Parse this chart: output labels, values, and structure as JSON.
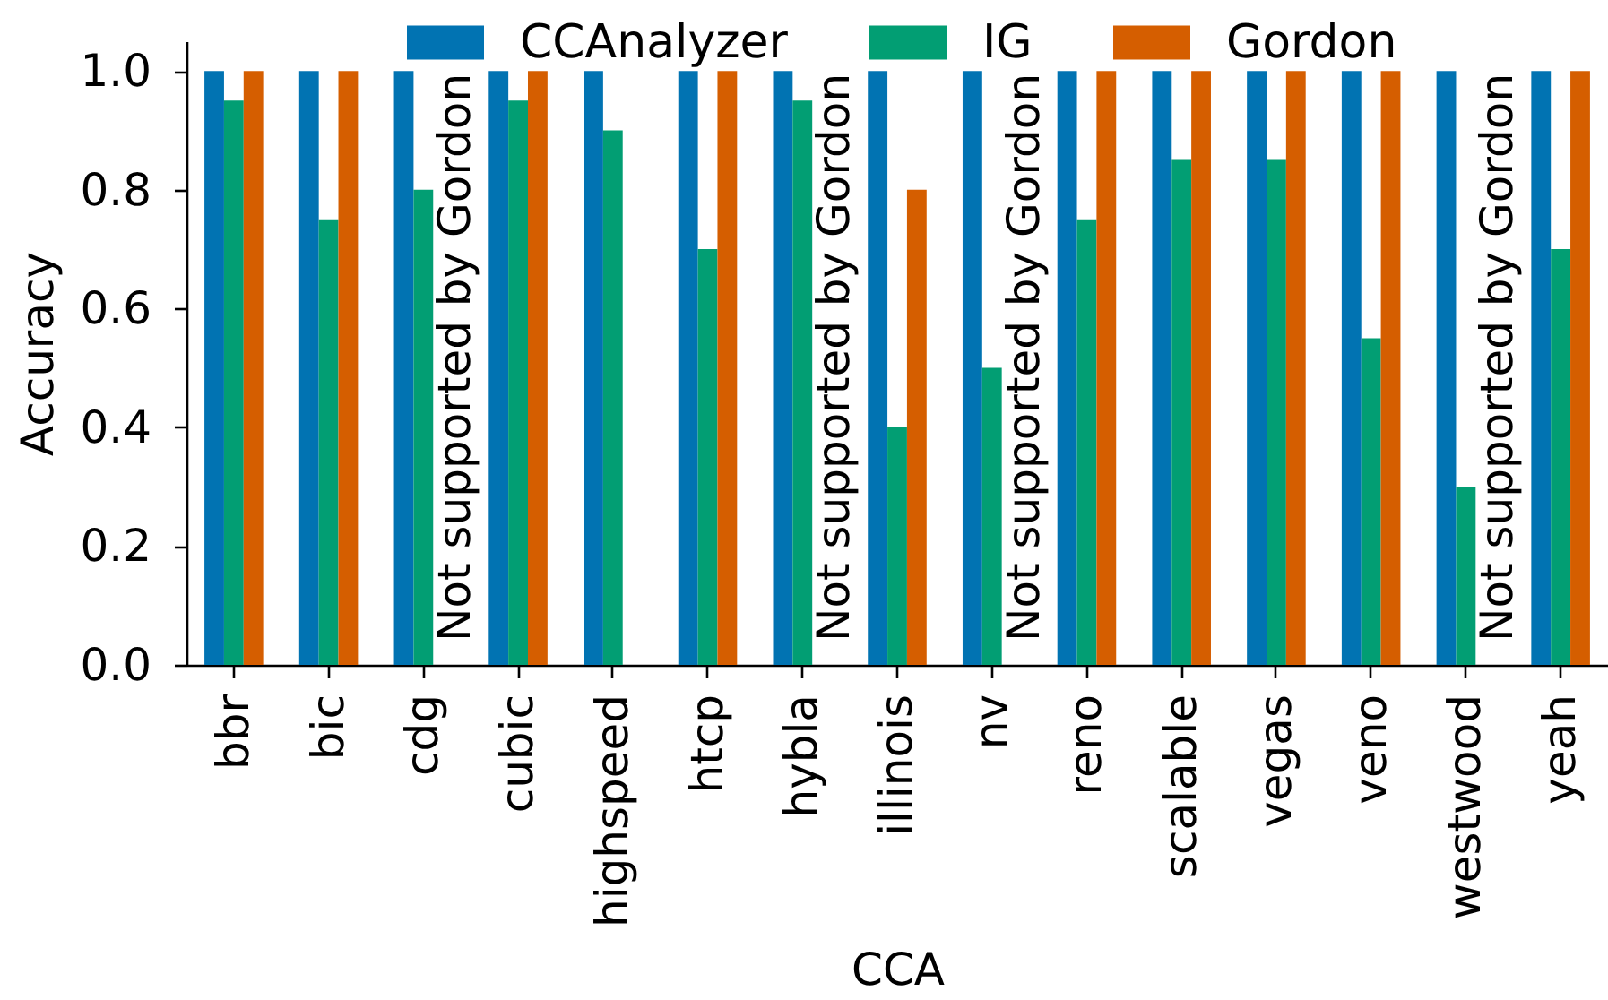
{
  "chart_data": {
    "type": "bar",
    "xlabel": "CCA",
    "ylabel": "Accuracy",
    "categories": [
      "bbr",
      "bic",
      "cdg",
      "cubic",
      "highspeed",
      "htcp",
      "hybla",
      "illinois",
      "nv",
      "reno",
      "scalable",
      "vegas",
      "veno",
      "westwood",
      "yeah"
    ],
    "series": [
      {
        "name": "CCAnalyzer",
        "color": "#0173b2",
        "values": [
          1,
          1,
          1,
          1,
          1,
          1,
          1,
          1,
          1,
          1,
          1,
          1,
          1,
          1,
          1
        ]
      },
      {
        "name": "IG",
        "color": "#029e73",
        "values": [
          0.95,
          0.75,
          0.8,
          0.95,
          0.9,
          0.7,
          0.95,
          0.4,
          0.5,
          0.75,
          0.85,
          0.85,
          0.55,
          0.3,
          0.7
        ]
      },
      {
        "name": "Gordon",
        "color": "#d55e00",
        "values": [
          1,
          1,
          null,
          1,
          null,
          1,
          null,
          0.8,
          null,
          1,
          1,
          1,
          1,
          null,
          1
        ]
      }
    ],
    "ylim": [
      0,
      1.05
    ],
    "yticks": [
      {
        "value": 0,
        "label": "0.0"
      },
      0.2,
      0.4,
      0.6,
      0.8,
      {
        "value": 1,
        "label": "1.0"
      }
    ],
    "legend": "top",
    "annotations": [
      {
        "text": "Not supported by Gordon",
        "x": "cdg",
        "y": 0
      },
      {
        "text": "Not supported by Gordon",
        "x": "hybla",
        "y": 0
      },
      {
        "text": "Not supported by Gordon",
        "x": "nv",
        "y": 0
      },
      {
        "text": "Not supported by Gordon",
        "x": "westwood",
        "y": 0
      }
    ]
  }
}
